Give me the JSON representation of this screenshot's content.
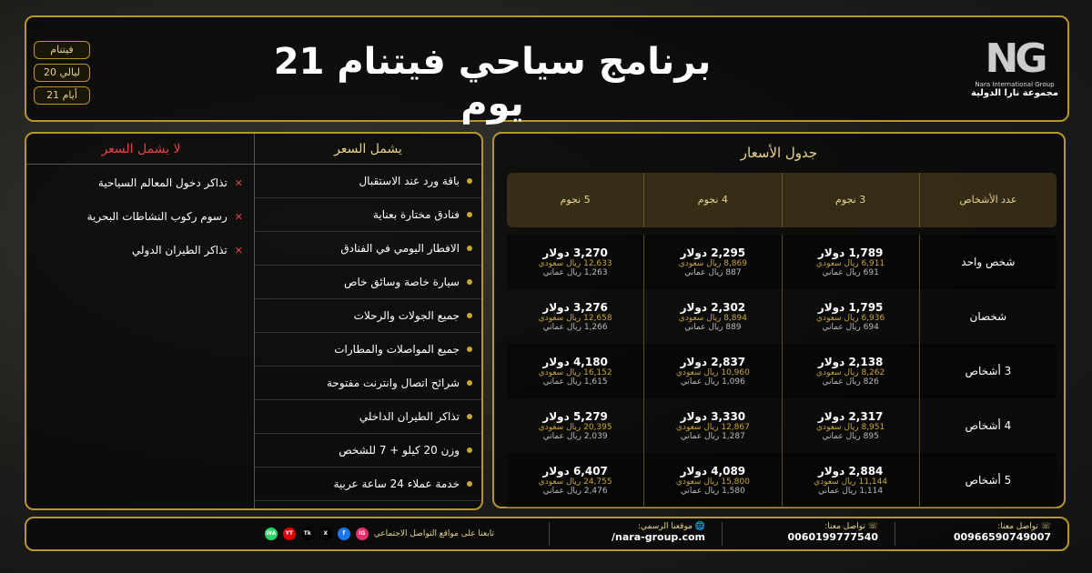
{
  "header": {
    "title": "برنامج سياحي فيتنام 21 يوم",
    "badges": [
      "فيتنام",
      "20 ليالي",
      "21 أيام"
    ],
    "logo": {
      "mark": "NG",
      "en": "Nara International Group",
      "ar": "مجموعة نارا الدولية"
    }
  },
  "includes": {
    "title": "يشمل السعر",
    "items": [
      "باقة ورد عند الاستقبال",
      "فنادق مختارة بعناية",
      "الافطار اليومي في الفنادق",
      "سيارة خاصة وسائق خاص",
      "جميع الجولات والرحلات",
      "جميع المواصلات والمطارات",
      "شرائح اتصال وانترنت مفتوحة",
      "تذاكر الطيران الداخلي",
      "وزن 20 كيلو + 7 للشخص",
      "خدمة عملاء 24 ساعة عربية"
    ]
  },
  "excludes": {
    "title": "لا يشمل السعر",
    "items": [
      "تذاكر دخول المعالم السياحية",
      "رسوم ركوب النشاطات البحرية",
      "تذاكر الطيران الدولي"
    ]
  },
  "prices": {
    "title": "جدول الأسعار",
    "headers": [
      "عدد الأشخاص",
      "3 نجوم",
      "4 نجوم",
      "5 نجوم"
    ],
    "rows": [
      {
        "persons": "شخص واحد",
        "cells": [
          {
            "usd": "1,789 دولار",
            "sar": "6,911 ريال سعودي",
            "omr": "691 ريال عماني"
          },
          {
            "usd": "2,295 دولار",
            "sar": "8,869 ريال سعودي",
            "omr": "887 ريال عماني"
          },
          {
            "usd": "3,270 دولار",
            "sar": "12,633 ريال سعودي",
            "omr": "1,263 ريال عماني"
          }
        ]
      },
      {
        "persons": "شخصان",
        "cells": [
          {
            "usd": "1,795 دولار",
            "sar": "6,936 ريال سعودي",
            "omr": "694 ريال عماني"
          },
          {
            "usd": "2,302 دولار",
            "sar": "8,894 ريال سعودي",
            "omr": "889 ريال عماني"
          },
          {
            "usd": "3,276 دولار",
            "sar": "12,658 ريال سعودي",
            "omr": "1,266 ريال عماني"
          }
        ]
      },
      {
        "persons": "3 أشخاص",
        "cells": [
          {
            "usd": "2,138 دولار",
            "sar": "8,262 ريال سعودي",
            "omr": "826 ريال عماني"
          },
          {
            "usd": "2,837 دولار",
            "sar": "10,960 ريال سعودي",
            "omr": "1,096 ريال عماني"
          },
          {
            "usd": "4,180 دولار",
            "sar": "16,152 ريال سعودي",
            "omr": "1,615 ريال عماني"
          }
        ]
      },
      {
        "persons": "4 أشخاص",
        "cells": [
          {
            "usd": "2,317 دولار",
            "sar": "8,951 ريال سعودي",
            "omr": "895 ريال عماني"
          },
          {
            "usd": "3,330 دولار",
            "sar": "12,867 ريال سعودي",
            "omr": "1,287 ريال عماني"
          },
          {
            "usd": "5,279 دولار",
            "sar": "20,395 ريال سعودي",
            "omr": "2,039 ريال عماني"
          }
        ]
      },
      {
        "persons": "5 أشخاص",
        "cells": [
          {
            "usd": "2,884 دولار",
            "sar": "11,144 ريال سعودي",
            "omr": "1,114 ريال عماني"
          },
          {
            "usd": "4,089 دولار",
            "sar": "15,800 ريال سعودي",
            "omr": "1,580 ريال عماني"
          },
          {
            "usd": "6,407 دولار",
            "sar": "24,755 ريال سعودي",
            "omr": "2,476 ريال عماني"
          }
        ]
      }
    ]
  },
  "footer": {
    "contact1": {
      "label": "تواصل معنا:",
      "value": "00966590749007"
    },
    "contact2": {
      "label": "تواصل معنا:",
      "value": "0060199777540"
    },
    "website": {
      "label": "موقعنا الرسمي:",
      "value": "nara-group.com/"
    },
    "social": {
      "label": "تابعنا على مواقع التواصل الاجتماعي",
      "icons": [
        {
          "name": "IG",
          "color": "#e1306c"
        },
        {
          "name": "f",
          "color": "#1877f2"
        },
        {
          "name": "X",
          "color": "#000000"
        },
        {
          "name": "Tk",
          "color": "#000000"
        },
        {
          "name": "YT",
          "color": "#e00000"
        },
        {
          "name": "WA",
          "color": "#25d366"
        }
      ]
    }
  },
  "colors": {
    "gold": "#b8962e",
    "red": "#e0444a"
  }
}
